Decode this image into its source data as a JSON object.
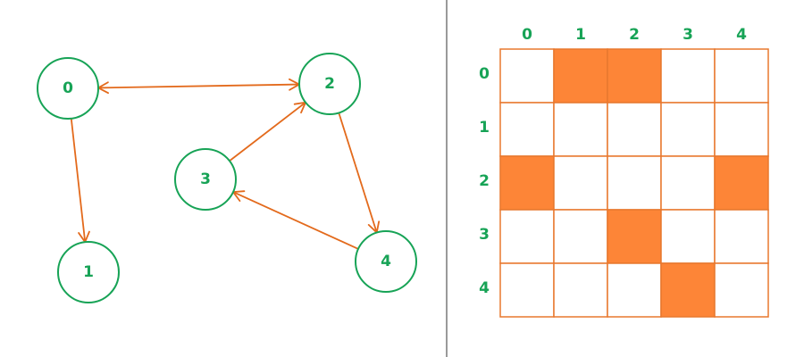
{
  "graph": {
    "nodes": [
      {
        "id": 0,
        "label": "0"
      },
      {
        "id": 1,
        "label": "1"
      },
      {
        "id": 2,
        "label": "2"
      },
      {
        "id": 3,
        "label": "3"
      },
      {
        "id": 4,
        "label": "4"
      }
    ],
    "edges": [
      {
        "from": 0,
        "to": 2,
        "bidirectional": true
      },
      {
        "from": 0,
        "to": 1,
        "bidirectional": false
      },
      {
        "from": 3,
        "to": 2,
        "bidirectional": false
      },
      {
        "from": 2,
        "to": 4,
        "bidirectional": false
      },
      {
        "from": 4,
        "to": 3,
        "bidirectional": false
      }
    ]
  },
  "matrix": {
    "column_headers": [
      "0",
      "1",
      "2",
      "3",
      "4"
    ],
    "row_headers": [
      "0",
      "1",
      "2",
      "3",
      "4"
    ],
    "cells": [
      [
        0,
        1,
        1,
        0,
        0
      ],
      [
        0,
        0,
        0,
        0,
        0
      ],
      [
        1,
        0,
        0,
        0,
        1
      ],
      [
        0,
        0,
        1,
        0,
        0
      ],
      [
        0,
        0,
        0,
        1,
        0
      ]
    ]
  },
  "colors": {
    "node_stroke": "#17a356",
    "label_text": "#17a356",
    "edge": "#e36a1c",
    "cell_filled": "#fd8537",
    "cell_empty": "#ffffff",
    "cell_border": "#e8782e",
    "divider": "#9a9a9a"
  }
}
